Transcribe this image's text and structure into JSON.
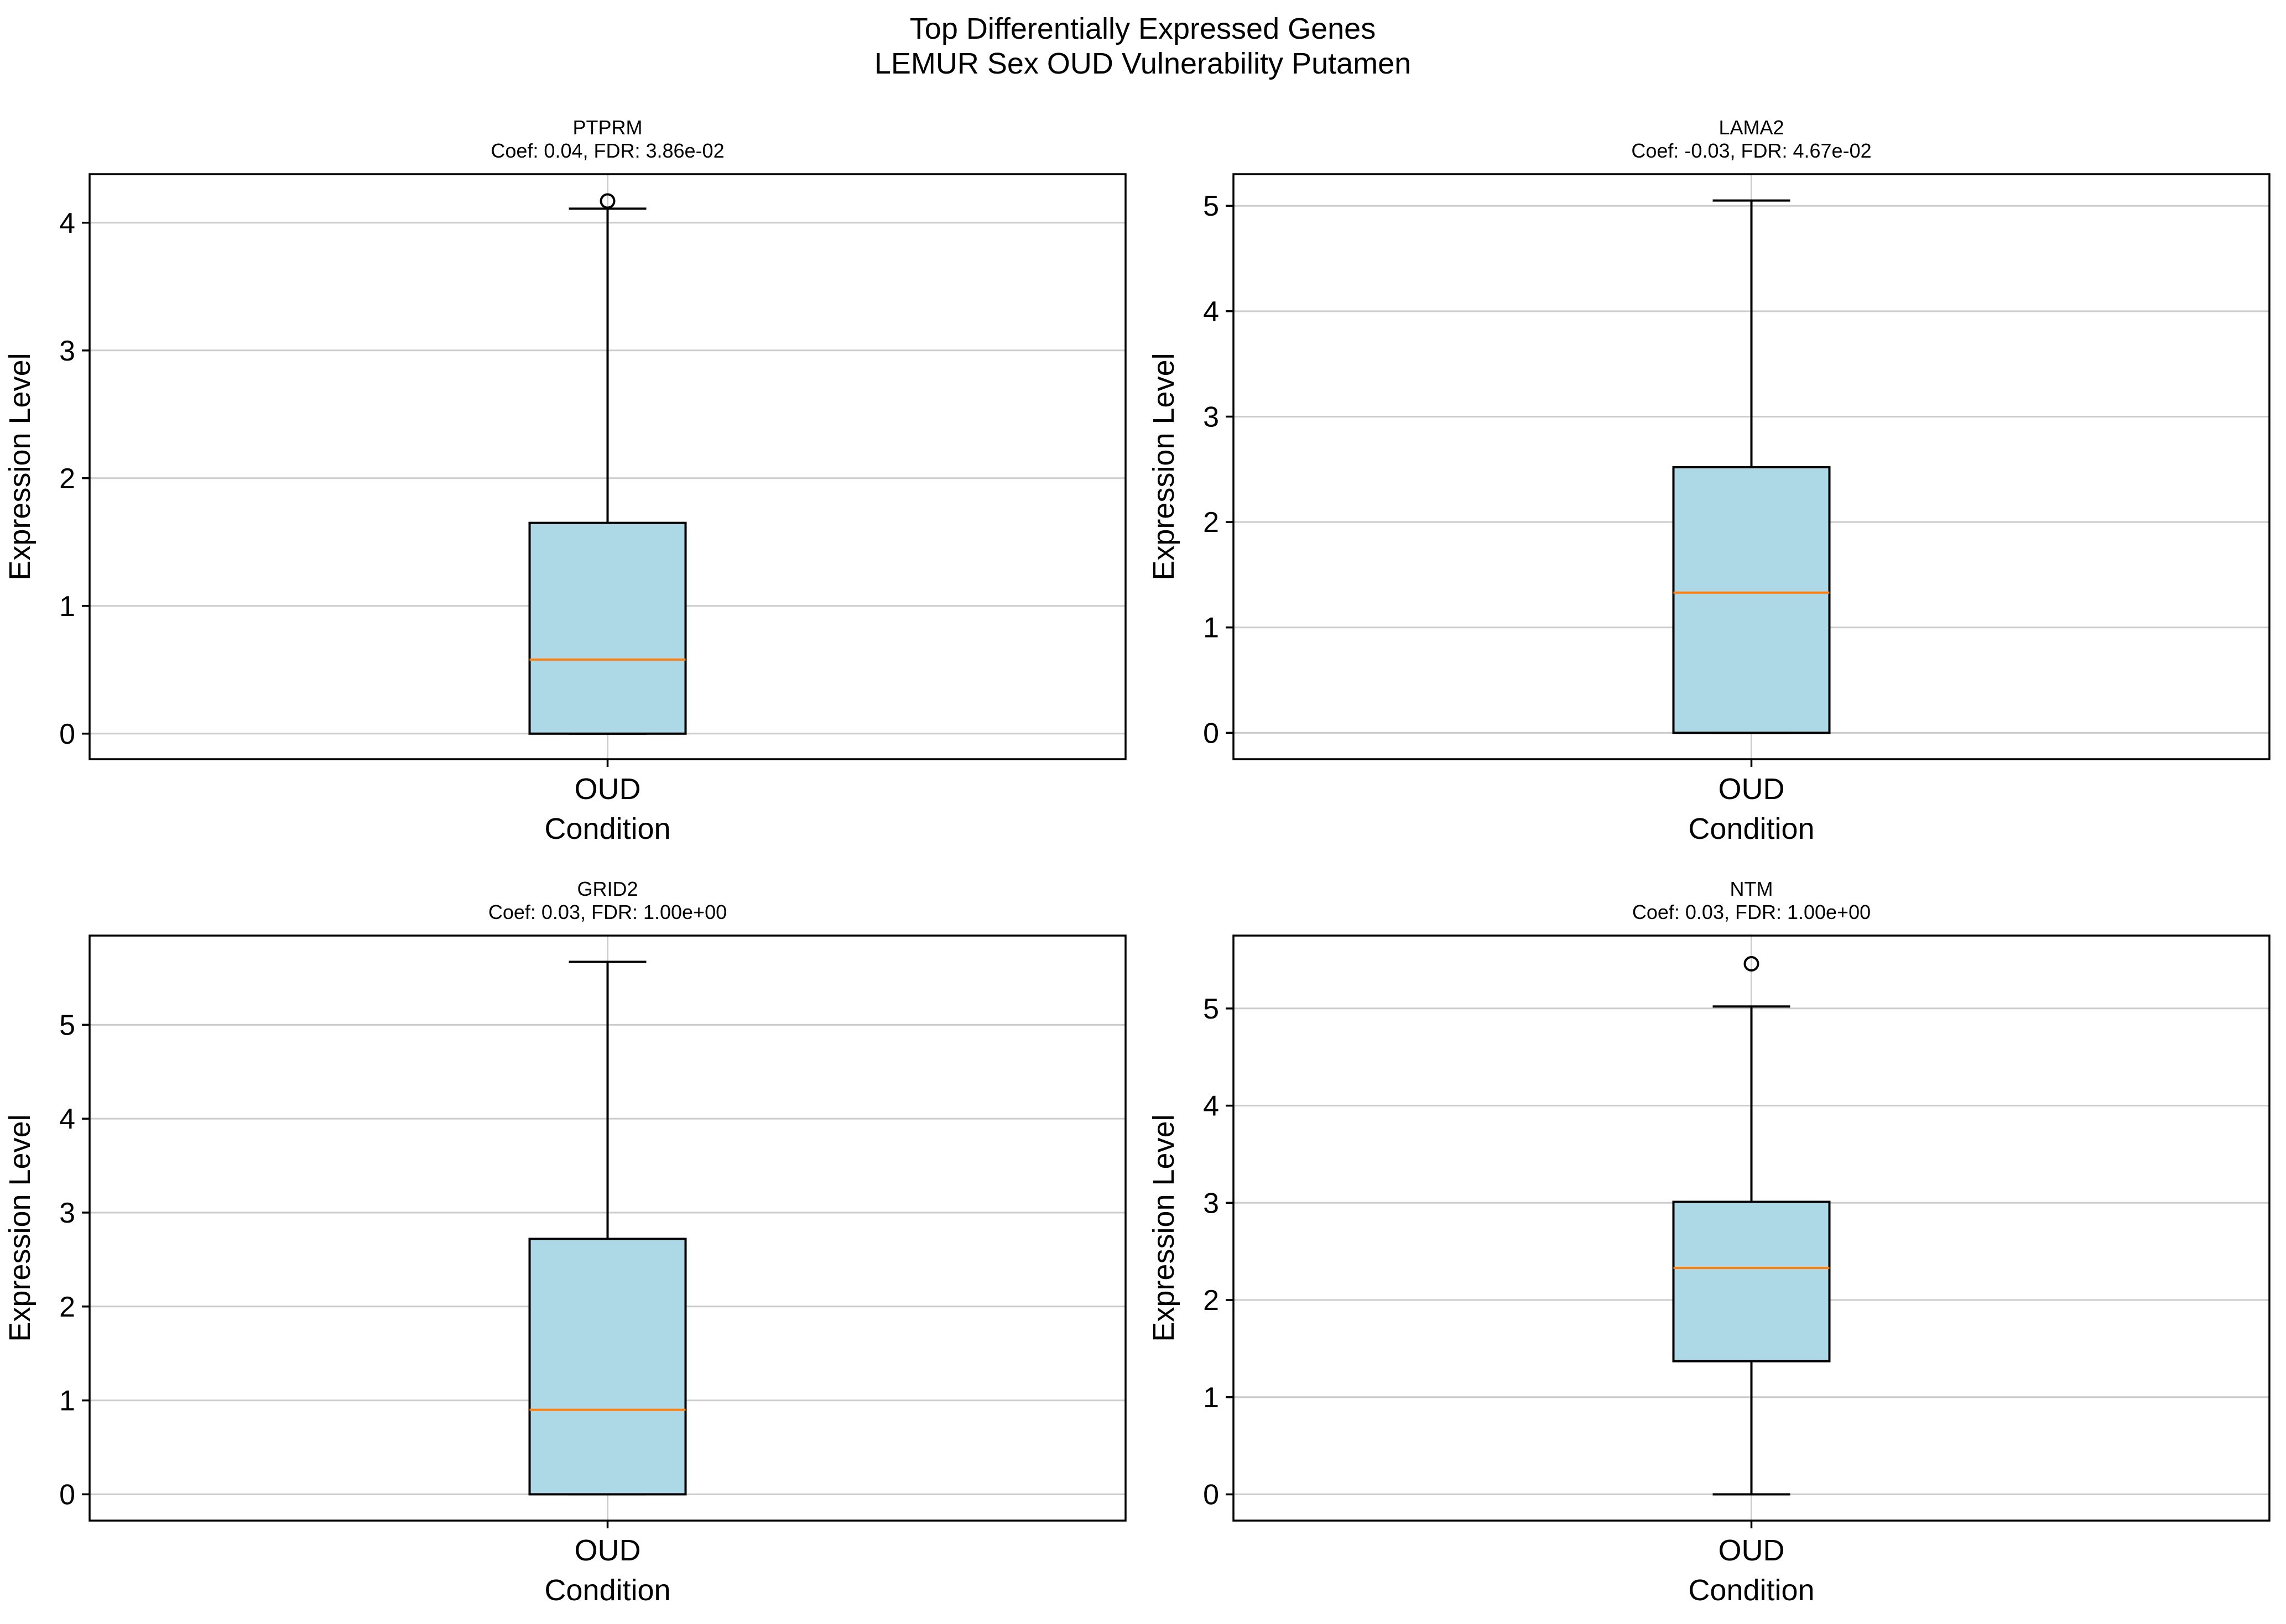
{
  "figure": {
    "title_line1": "Top Differentially Expressed Genes",
    "title_line2": "LEMUR Sex OUD Vulnerability Putamen"
  },
  "colors": {
    "box_fill": "#add8e6",
    "median": "#ff7f0e",
    "grid": "#cccccc",
    "frame": "#000000"
  },
  "chart_data": [
    {
      "type": "box",
      "title": "PTPRM",
      "subtitle": "Coef: 0.04, FDR: 3.86e-02",
      "xlabel": "Condition",
      "ylabel": "Expression Level",
      "categories": [
        "OUD"
      ],
      "ylim": [
        -0.2,
        4.38
      ],
      "yticks": [
        0,
        1,
        2,
        3,
        4
      ],
      "grid": true,
      "boxes": [
        {
          "category": "OUD",
          "whisker_low": 0,
          "q1": 0,
          "median": 0.58,
          "q3": 1.65,
          "whisker_high": 4.11,
          "outliers": [
            4.17
          ]
        }
      ]
    },
    {
      "type": "box",
      "title": "LAMA2",
      "subtitle": "Coef: -0.03, FDR: 4.67e-02",
      "xlabel": "Condition",
      "ylabel": "Expression Level",
      "categories": [
        "OUD"
      ],
      "ylim": [
        -0.25,
        5.3
      ],
      "yticks": [
        0,
        1,
        2,
        3,
        4,
        5
      ],
      "grid": true,
      "boxes": [
        {
          "category": "OUD",
          "whisker_low": 0,
          "q1": 0,
          "median": 1.33,
          "q3": 2.52,
          "whisker_high": 5.05,
          "outliers": []
        }
      ]
    },
    {
      "type": "box",
      "title": "GRID2",
      "subtitle": "Coef: 0.03, FDR: 1.00e+00",
      "xlabel": "Condition",
      "ylabel": "Expression Level",
      "categories": [
        "OUD"
      ],
      "ylim": [
        -0.28,
        5.95
      ],
      "yticks": [
        0,
        1,
        2,
        3,
        4,
        5
      ],
      "grid": true,
      "boxes": [
        {
          "category": "OUD",
          "whisker_low": 0,
          "q1": 0,
          "median": 0.9,
          "q3": 2.72,
          "whisker_high": 5.67,
          "outliers": []
        }
      ]
    },
    {
      "type": "box",
      "title": "NTM",
      "subtitle": "Coef: 0.03, FDR: 1.00e+00",
      "xlabel": "Condition",
      "ylabel": "Expression Level",
      "categories": [
        "OUD"
      ],
      "ylim": [
        -0.27,
        5.75
      ],
      "yticks": [
        0,
        1,
        2,
        3,
        4,
        5
      ],
      "grid": true,
      "boxes": [
        {
          "category": "OUD",
          "whisker_low": 0,
          "q1": 1.37,
          "median": 2.33,
          "q3": 3.01,
          "whisker_high": 5.02,
          "outliers": [
            5.46
          ]
        }
      ]
    }
  ]
}
